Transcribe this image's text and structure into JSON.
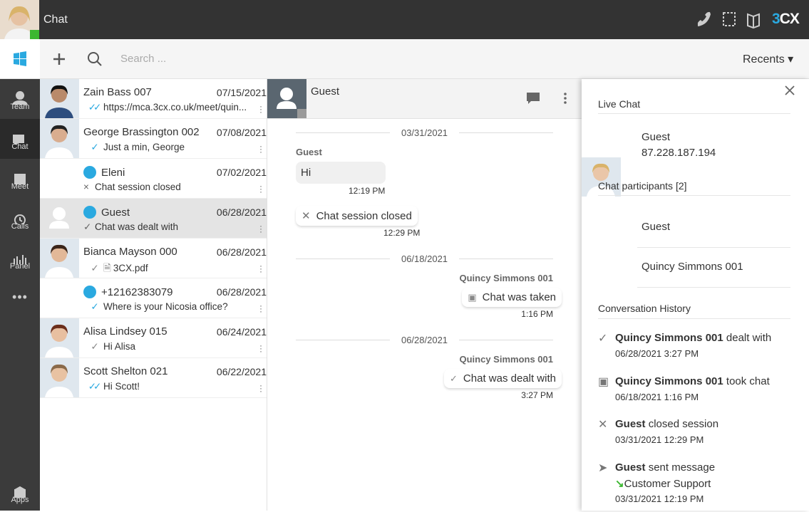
{
  "header": {
    "title": "Chat",
    "brand": "3CX"
  },
  "toolbar": {
    "search_placeholder": "Search ...",
    "recents": "Recents"
  },
  "nav": [
    "Team",
    "Chat",
    "Meet",
    "Calls",
    "Panel",
    "Apps"
  ],
  "conversations": [
    {
      "name": "Zain Bass 007",
      "date": "07/15/2021",
      "preview": "https://mca.3cx.co.uk/meet/quin..."
    },
    {
      "name": "George Brassington 002",
      "date": "07/08/2021",
      "preview": "Just a min, George"
    },
    {
      "name": "Eleni",
      "date": "07/02/2021",
      "preview": "Chat session closed"
    },
    {
      "name": "Guest",
      "date": "06/28/2021",
      "preview": "Chat was dealt with"
    },
    {
      "name": "Bianca Mayson 000",
      "date": "06/28/2021",
      "preview": "3CX.pdf"
    },
    {
      "name": "+12162383079",
      "date": "06/28/2021",
      "preview": "Where is your Nicosia office?"
    },
    {
      "name": "Alisa Lindsey 015",
      "date": "06/24/2021",
      "preview": "Hi Alisa"
    },
    {
      "name": "Scott Shelton 021",
      "date": "06/22/2021",
      "preview": "Hi Scott!"
    }
  ],
  "chat": {
    "title": "Guest",
    "items": [
      {
        "date": "03/31/2021"
      },
      {
        "sender": "Guest",
        "text": "Hi",
        "time": "12:19 PM"
      },
      {
        "text": "Chat session closed",
        "time": "12:29 PM"
      },
      {
        "date": "06/18/2021"
      },
      {
        "sender": "Quincy Simmons 001",
        "text": "Chat was taken",
        "time": "1:16 PM"
      },
      {
        "date": "06/28/2021"
      },
      {
        "sender": "Quincy Simmons 001",
        "text": "Chat was dealt with",
        "time": "3:27 PM"
      }
    ]
  },
  "details": {
    "live_chat_title": "Live Chat",
    "visitor": {
      "name": "Guest",
      "ip": "87.228.187.194"
    },
    "participants_title": "Chat participants [2]",
    "participants": [
      "Guest",
      "Quincy Simmons 001"
    ],
    "history_title": "Conversation History",
    "history": [
      {
        "actor": "Quincy Simmons 001",
        "action": "dealt with",
        "time": "06/28/2021 3:27 PM"
      },
      {
        "actor": "Quincy Simmons 001",
        "action": "took chat",
        "time": "06/18/2021 1:16 PM"
      },
      {
        "actor": "Guest",
        "action": "closed session",
        "time": "03/31/2021 12:29 PM"
      },
      {
        "actor": "Guest",
        "action": "sent message",
        "detail": "Customer Support",
        "time": "03/31/2021 12:19 PM"
      }
    ]
  }
}
